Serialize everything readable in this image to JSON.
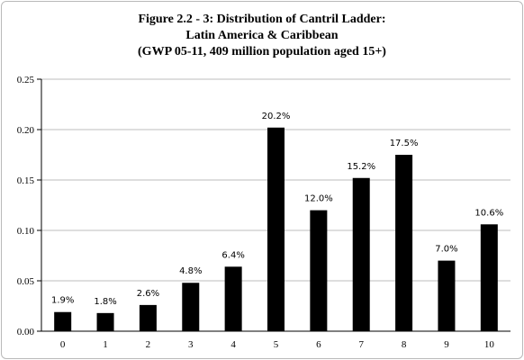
{
  "chart_data": {
    "type": "bar",
    "title": [
      "Figure 2.2 - 3: Distribution of Cantril Ladder:",
      "Latin America & Caribbean",
      "(GWP 05-11, 409 million population aged 15+)"
    ],
    "xlabel": "",
    "ylabel": "",
    "categories": [
      "0",
      "1",
      "2",
      "3",
      "4",
      "5",
      "6",
      "7",
      "8",
      "9",
      "10"
    ],
    "values": [
      0.019,
      0.018,
      0.026,
      0.048,
      0.064,
      0.202,
      0.12,
      0.152,
      0.175,
      0.07,
      0.106
    ],
    "data_labels": [
      "1.9%",
      "1.8%",
      "2.6%",
      "4.8%",
      "6.4%",
      "20.2%",
      "12.0%",
      "15.2%",
      "17.5%",
      "7.0%",
      "10.6%"
    ],
    "ylim": [
      0,
      0.25
    ],
    "yticks": [
      "0.00",
      "0.05",
      "0.10",
      "0.15",
      "0.20",
      "0.25"
    ],
    "grid": true,
    "legend": "none",
    "bar_color": "#000000",
    "grid_color": "#bdbdbd"
  }
}
